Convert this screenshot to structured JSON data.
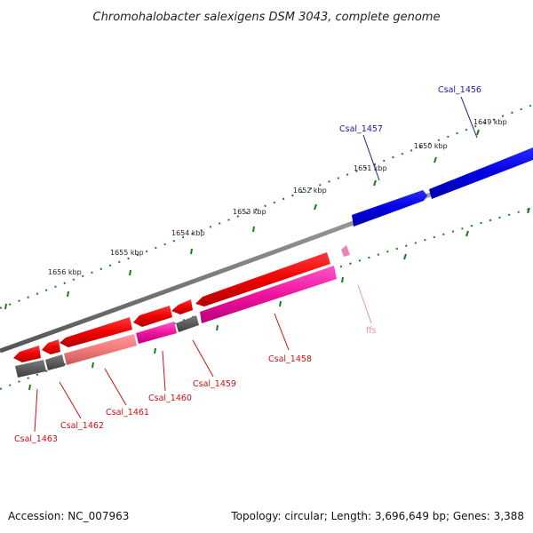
{
  "title": "Chromohalobacter salexigens DSM 3043, complete genome",
  "footer": {
    "accession": "Accession: NC_007963",
    "summary": "Topology: circular; Length: 3,696,649 bp; Genes: 3,388"
  },
  "ruler": {
    "labels": [
      "1649 kbp",
      "1650 kbp",
      "1651 kbp",
      "1652 kbp",
      "1653 kbp",
      "1654 kbp",
      "1655 kbp",
      "1656 kbp"
    ]
  },
  "genes": [
    {
      "id": "Csal_1456",
      "strand": "+",
      "color": "#1a1aa6"
    },
    {
      "id": "Csal_1457",
      "strand": "+",
      "color": "#1a1aa6"
    },
    {
      "id": "ffs",
      "strand": "-",
      "color": "#e890b8"
    },
    {
      "id": "Csal_1458",
      "strand": "-",
      "color": "#cc1111"
    },
    {
      "id": "Csal_1459",
      "strand": "-",
      "color": "#cc1111"
    },
    {
      "id": "Csal_1460",
      "strand": "-",
      "color": "#cc1111"
    },
    {
      "id": "Csal_1461",
      "strand": "-",
      "color": "#cc1111"
    },
    {
      "id": "Csal_1462",
      "strand": "-",
      "color": "#cc1111"
    },
    {
      "id": "Csal_1463",
      "strand": "-",
      "color": "#cc1111"
    }
  ]
}
